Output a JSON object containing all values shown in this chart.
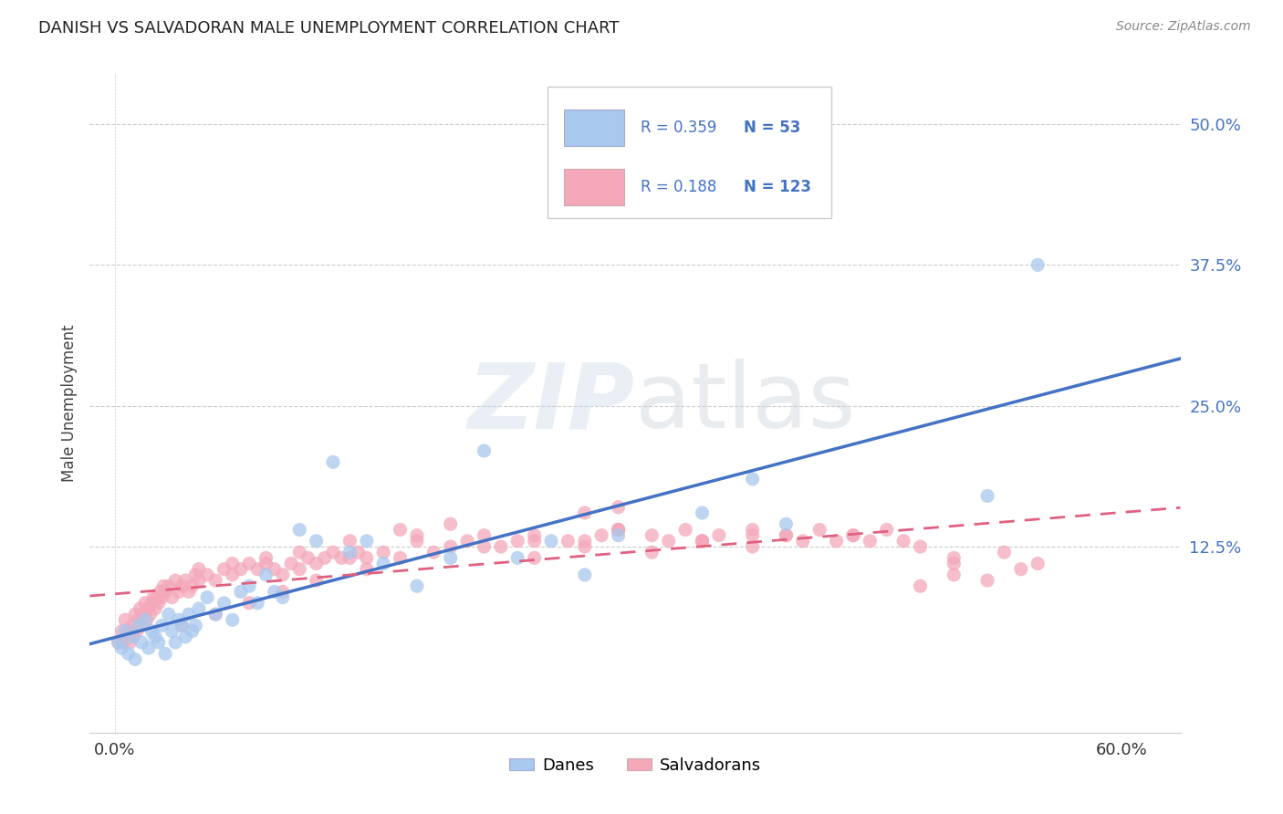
{
  "title": "DANISH VS SALVADORAN MALE UNEMPLOYMENT CORRELATION CHART",
  "source": "Source: ZipAtlas.com",
  "ylabel": "Male Unemployment",
  "ytick_values": [
    0.0,
    0.125,
    0.25,
    0.375,
    0.5
  ],
  "ytick_labels": [
    "",
    "12.5%",
    "25.0%",
    "37.5%",
    "50.0%"
  ],
  "xtick_values": [
    0.0,
    0.6
  ],
  "xtick_labels": [
    "0.0%",
    "60.0%"
  ],
  "xlim": [
    -0.015,
    0.635
  ],
  "ylim": [
    -0.04,
    0.545
  ],
  "legend_r_danes": "0.359",
  "legend_n_danes": "53",
  "legend_r_salvadorans": "0.188",
  "legend_n_salvadorans": "123",
  "legend_label_danes": "Danes",
  "legend_label_salvadorans": "Salvadorans",
  "color_danes": "#A8C8EE",
  "color_salvadorans": "#F4A8BA",
  "color_danes_line": "#4472C4",
  "color_salvadorans_line": "#E06080",
  "color_text_blue": "#4472C4",
  "color_ytick": "#4472C4",
  "danes_x": [
    0.002,
    0.004,
    0.006,
    0.008,
    0.01,
    0.012,
    0.014,
    0.016,
    0.018,
    0.02,
    0.022,
    0.024,
    0.026,
    0.028,
    0.03,
    0.032,
    0.034,
    0.036,
    0.038,
    0.04,
    0.042,
    0.044,
    0.046,
    0.048,
    0.05,
    0.055,
    0.06,
    0.065,
    0.07,
    0.075,
    0.08,
    0.085,
    0.09,
    0.095,
    0.1,
    0.11,
    0.12,
    0.13,
    0.14,
    0.15,
    0.16,
    0.18,
    0.2,
    0.22,
    0.24,
    0.26,
    0.28,
    0.3,
    0.35,
    0.38,
    0.4,
    0.52,
    0.55
  ],
  "danes_y": [
    0.04,
    0.035,
    0.05,
    0.03,
    0.045,
    0.025,
    0.055,
    0.04,
    0.06,
    0.035,
    0.05,
    0.045,
    0.04,
    0.055,
    0.03,
    0.065,
    0.05,
    0.04,
    0.06,
    0.055,
    0.045,
    0.065,
    0.05,
    0.055,
    0.07,
    0.08,
    0.065,
    0.075,
    0.06,
    0.085,
    0.09,
    0.075,
    0.1,
    0.085,
    0.08,
    0.14,
    0.13,
    0.2,
    0.12,
    0.13,
    0.11,
    0.09,
    0.115,
    0.21,
    0.115,
    0.13,
    0.1,
    0.135,
    0.155,
    0.185,
    0.145,
    0.17,
    0.375
  ],
  "salvadorans_x": [
    0.002,
    0.004,
    0.005,
    0.006,
    0.008,
    0.009,
    0.01,
    0.011,
    0.012,
    0.013,
    0.014,
    0.015,
    0.016,
    0.017,
    0.018,
    0.019,
    0.02,
    0.021,
    0.022,
    0.023,
    0.024,
    0.025,
    0.026,
    0.027,
    0.028,
    0.029,
    0.03,
    0.032,
    0.034,
    0.036,
    0.038,
    0.04,
    0.042,
    0.044,
    0.046,
    0.048,
    0.05,
    0.055,
    0.06,
    0.065,
    0.07,
    0.075,
    0.08,
    0.085,
    0.09,
    0.095,
    0.1,
    0.105,
    0.11,
    0.115,
    0.12,
    0.125,
    0.13,
    0.135,
    0.14,
    0.145,
    0.15,
    0.16,
    0.17,
    0.18,
    0.19,
    0.2,
    0.21,
    0.22,
    0.23,
    0.24,
    0.25,
    0.27,
    0.29,
    0.3,
    0.32,
    0.34,
    0.36,
    0.38,
    0.4,
    0.42,
    0.44,
    0.46,
    0.48,
    0.5,
    0.52,
    0.54,
    0.3,
    0.25,
    0.22,
    0.18,
    0.15,
    0.12,
    0.1,
    0.08,
    0.06,
    0.04,
    0.28,
    0.32,
    0.35,
    0.38,
    0.41,
    0.44,
    0.47,
    0.5,
    0.28,
    0.2,
    0.17,
    0.14,
    0.11,
    0.09,
    0.07,
    0.05,
    0.25,
    0.3,
    0.35,
    0.4,
    0.45,
    0.5,
    0.55,
    0.3,
    0.35,
    0.28,
    0.33,
    0.38,
    0.43,
    0.48,
    0.53
  ],
  "salvadorans_y": [
    0.04,
    0.05,
    0.04,
    0.06,
    0.05,
    0.04,
    0.055,
    0.045,
    0.065,
    0.05,
    0.06,
    0.07,
    0.055,
    0.065,
    0.075,
    0.06,
    0.07,
    0.065,
    0.075,
    0.08,
    0.07,
    0.08,
    0.075,
    0.085,
    0.08,
    0.09,
    0.085,
    0.09,
    0.08,
    0.095,
    0.085,
    0.09,
    0.095,
    0.085,
    0.09,
    0.1,
    0.095,
    0.1,
    0.095,
    0.105,
    0.1,
    0.105,
    0.11,
    0.105,
    0.11,
    0.105,
    0.1,
    0.11,
    0.105,
    0.115,
    0.11,
    0.115,
    0.12,
    0.115,
    0.115,
    0.12,
    0.115,
    0.12,
    0.115,
    0.13,
    0.12,
    0.125,
    0.13,
    0.135,
    0.125,
    0.13,
    0.135,
    0.13,
    0.135,
    0.14,
    0.135,
    0.14,
    0.135,
    0.14,
    0.135,
    0.14,
    0.135,
    0.14,
    0.09,
    0.1,
    0.095,
    0.105,
    0.16,
    0.115,
    0.125,
    0.135,
    0.105,
    0.095,
    0.085,
    0.075,
    0.065,
    0.055,
    0.13,
    0.12,
    0.13,
    0.125,
    0.13,
    0.135,
    0.13,
    0.11,
    0.155,
    0.145,
    0.14,
    0.13,
    0.12,
    0.115,
    0.11,
    0.105,
    0.13,
    0.14,
    0.13,
    0.135,
    0.13,
    0.115,
    0.11,
    0.14,
    0.13,
    0.125,
    0.13,
    0.135,
    0.13,
    0.125,
    0.12
  ],
  "watermark_zip": "ZIP",
  "watermark_atlas": "atlas",
  "background_color": "#FFFFFF",
  "grid_color": "#CCCCCC",
  "spine_color": "#CCCCCC"
}
